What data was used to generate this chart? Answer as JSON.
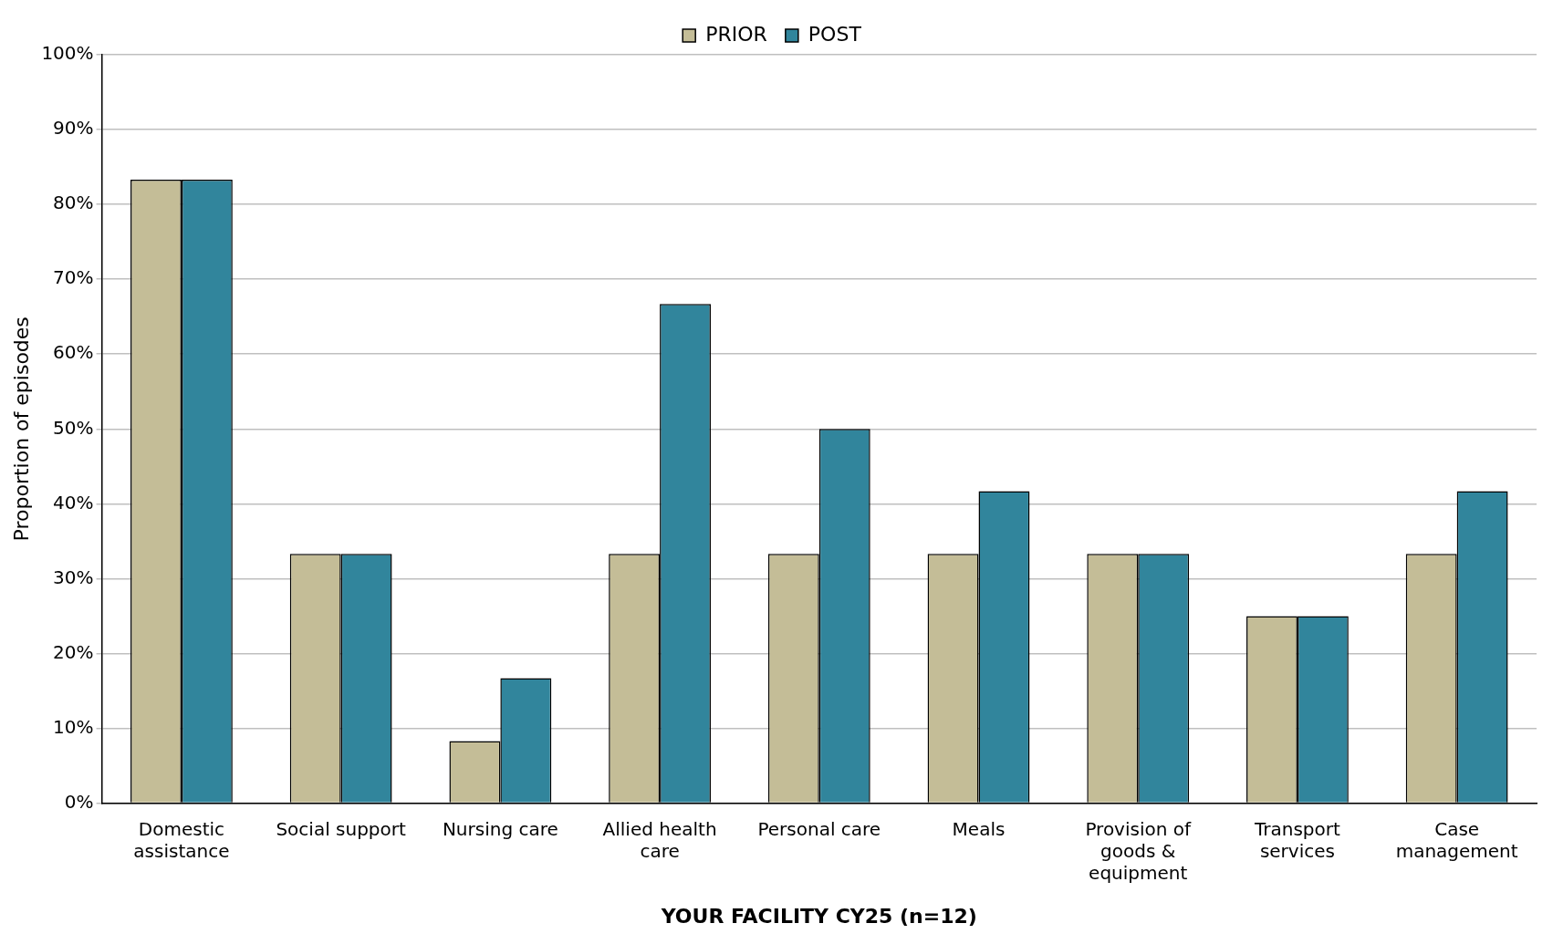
{
  "chart_data": {
    "type": "bar",
    "xlabel": "YOUR FACILITY CY25 (n=12)",
    "ylabel": "Proportion of episodes",
    "categories": [
      "Domestic assistance",
      "Social support",
      "Nursing care",
      "Allied health care",
      "Personal care",
      "Meals",
      "Provision of goods & equipment",
      "Transport services",
      "Case management"
    ],
    "series": [
      {
        "name": "PRIOR",
        "color": "#c4bd97",
        "values": [
          83.3,
          33.3,
          8.3,
          33.3,
          33.3,
          33.3,
          33.3,
          25,
          33.3
        ]
      },
      {
        "name": "POST",
        "color": "#31859c",
        "values": [
          83.3,
          33.3,
          16.7,
          66.7,
          50,
          41.7,
          33.3,
          25,
          41.7
        ]
      }
    ],
    "ylim": [
      0,
      100
    ],
    "yticks": [
      {
        "value": 0,
        "label": "0%"
      },
      {
        "value": 10,
        "label": "10%"
      },
      {
        "value": 20,
        "label": "20%"
      },
      {
        "value": 30,
        "label": "30%"
      },
      {
        "value": 40,
        "label": "40%"
      },
      {
        "value": 50,
        "label": "50%"
      },
      {
        "value": 60,
        "label": "60%"
      },
      {
        "value": 70,
        "label": "70%"
      },
      {
        "value": 80,
        "label": "80%"
      },
      {
        "value": 90,
        "label": "90%"
      },
      {
        "value": 100,
        "label": "100%"
      }
    ],
    "grid": "y",
    "legend": "top"
  }
}
